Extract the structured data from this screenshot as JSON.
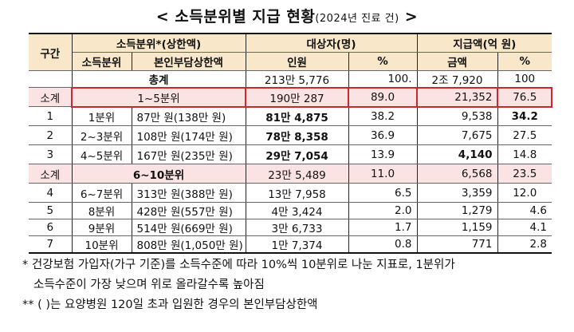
{
  "title": {
    "main": "< 소득분위별 지급 현황",
    "sub": "(2024년 진료 건)",
    "end": " >"
  },
  "headers": {
    "section": "구간",
    "income_group": "소득분위*(상한액)",
    "recipients": "대상자(명)",
    "payments": "지급액(억 원)",
    "income_decile": "소득분위",
    "copay_cap": "본인부담상한액",
    "people": "인원",
    "people_pct": "%",
    "amount": "금액",
    "amount_pct": "%"
  },
  "total": {
    "label": "총계",
    "people": "213만 5,776",
    "people_pct": "100.",
    "amount": "2조 7,920",
    "amount_pct": "100"
  },
  "subtotals": [
    {
      "section": "소계",
      "label": "1~5분위",
      "people": "190만 287",
      "people_pct": "89.0",
      "amount": "21,352",
      "amount_pct": "76.5"
    },
    {
      "section": "소계",
      "label": "6~10분위",
      "people": "23만 5,489",
      "people_pct": "11.0",
      "amount": "6,568",
      "amount_pct": "23.5"
    }
  ],
  "rows": [
    {
      "section": "1",
      "decile": "1분위",
      "cap": "87만 원(138만 원)",
      "people": "81만 4,875",
      "people_pct": "38.2",
      "amount": "9,538",
      "amount_pct": "34.2"
    },
    {
      "section": "2",
      "decile": "2~3분위",
      "cap": "108만 원(174만 원)",
      "people": "78만 8,358",
      "people_pct": "36.9",
      "amount": "7,675",
      "amount_pct": "27.5"
    },
    {
      "section": "3",
      "decile": "4~5분위",
      "cap": "167만 원(235만 원)",
      "people": "29만 7,054",
      "people_pct": "13.9",
      "amount": "4,140",
      "amount_pct": "14.8"
    },
    {
      "section": "4",
      "decile": "6~7분위",
      "cap": "313만 원(388만 원)",
      "people": "13만 7,958",
      "people_pct": "6.5",
      "amount": "3,359",
      "amount_pct": "12.0"
    },
    {
      "section": "5",
      "decile": "8분위",
      "cap": "428만 원(557만 원)",
      "people": "4만 3,424",
      "people_pct": "2.0",
      "amount": "1,279",
      "amount_pct": "4.6"
    },
    {
      "section": "6",
      "decile": "9분위",
      "cap": "514만 원(669만 원)",
      "people": "3만 6,733",
      "people_pct": "1.7",
      "amount": "1,159",
      "amount_pct": "4.1"
    },
    {
      "section": "7",
      "decile": "10분위",
      "cap": "808만 원(1,050만 원)",
      "people": "1만 7,374",
      "people_pct": "0.8",
      "amount": "771",
      "amount_pct": "2.8"
    }
  ],
  "notes": {
    "note1_line1": "* 건강보험 가입자(가구 기준)를 소득수준에 따라 10%씩 10분위로 나눈 지표로, 1분위가",
    "note1_line2": "소득수준이 가장 낮으며 위로 올라갈수록 높아짐",
    "note2": "** ( )는 요양병원 120일 초과 입원한 경우의 본인부담상한액"
  },
  "colors": {
    "header_bg": "#f8e8c9",
    "subtotal_bg": "#fbe3e3",
    "highlight_border": "#c8282e"
  }
}
